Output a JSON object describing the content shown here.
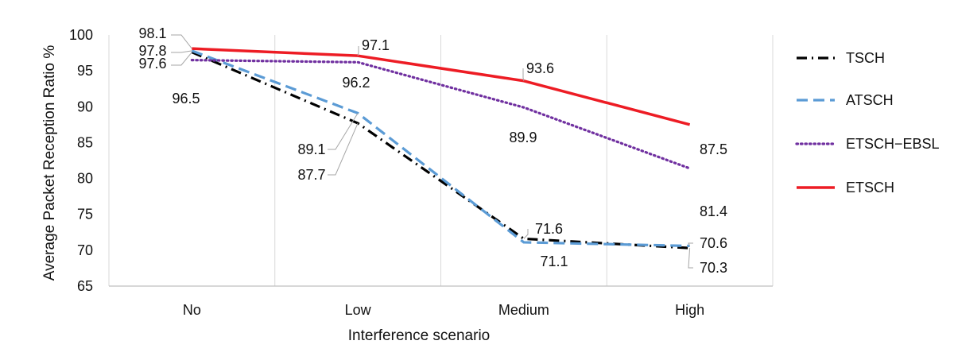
{
  "chart_data": {
    "type": "line",
    "title": "",
    "xlabel": "Interference scenario",
    "ylabel": "Average Packet Reception Ratio %",
    "categories": [
      "No",
      "Low",
      "Medium",
      "High"
    ],
    "ylim": [
      65,
      100
    ],
    "yticks": [
      65,
      70,
      75,
      80,
      85,
      90,
      95,
      100
    ],
    "grid": "vertical",
    "legend_position": "right",
    "series": [
      {
        "name": "TSCH",
        "values": [
          97.6,
          87.7,
          71.6,
          70.3
        ],
        "color": "#000000",
        "style": "dash-dot"
      },
      {
        "name": "ATSCH",
        "values": [
          97.8,
          89.1,
          71.1,
          70.6
        ],
        "color": "#5b9bd5",
        "style": "dashed"
      },
      {
        "name": "ETSCH−EBSL",
        "values": [
          96.5,
          96.2,
          89.9,
          81.4
        ],
        "color": "#7030a0",
        "style": "dotted"
      },
      {
        "name": "ETSCH",
        "values": [
          98.1,
          97.1,
          93.6,
          87.5
        ],
        "color": "#ed1c24",
        "style": "solid"
      }
    ],
    "data_labels": [
      {
        "text": "98.1",
        "series": "ETSCH",
        "index": 0
      },
      {
        "text": "97.8",
        "series": "ATSCH",
        "index": 0
      },
      {
        "text": "97.6",
        "series": "TSCH",
        "index": 0
      },
      {
        "text": "96.5",
        "series": "ETSCH−EBSL",
        "index": 0
      },
      {
        "text": "97.1",
        "series": "ETSCH",
        "index": 1
      },
      {
        "text": "96.2",
        "series": "ETSCH−EBSL",
        "index": 1
      },
      {
        "text": "89.1",
        "series": "ATSCH",
        "index": 1
      },
      {
        "text": "87.7",
        "series": "TSCH",
        "index": 1
      },
      {
        "text": "93.6",
        "series": "ETSCH",
        "index": 2
      },
      {
        "text": "89.9",
        "series": "ETSCH−EBSL",
        "index": 2
      },
      {
        "text": "71.6",
        "series": "TSCH",
        "index": 2
      },
      {
        "text": "71.1",
        "series": "ATSCH",
        "index": 2
      },
      {
        "text": "87.5",
        "series": "ETSCH",
        "index": 3
      },
      {
        "text": "81.4",
        "series": "ETSCH−EBSL",
        "index": 3
      },
      {
        "text": "70.6",
        "series": "ATSCH",
        "index": 3
      },
      {
        "text": "70.3",
        "series": "TSCH",
        "index": 3
      }
    ]
  }
}
